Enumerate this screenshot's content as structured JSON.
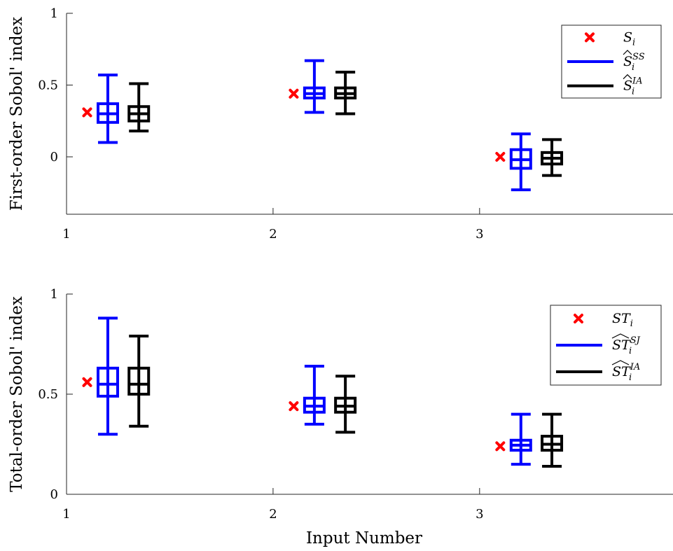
{
  "chart_data": [
    {
      "type": "box",
      "panel": "top",
      "ylabel": "First-order Sobol' index",
      "xlabel": "",
      "xlim": [
        1,
        3.95
      ],
      "ylim": [
        -0.4,
        1
      ],
      "xticks": [
        "1",
        "2",
        "3"
      ],
      "yticks": [
        "0",
        "0.5",
        "1"
      ],
      "grid": false,
      "legend_position": "top-right",
      "legend": [
        {
          "base": "S",
          "sub": "i",
          "sup": "",
          "hat": false,
          "marker": "x",
          "color": "#ff0000"
        },
        {
          "base": "S",
          "sub": "i",
          "sup": "SS",
          "hat": true,
          "marker": "line",
          "color": "#0000ff"
        },
        {
          "base": "S",
          "sub": "i",
          "sup": "IA",
          "hat": true,
          "marker": "line",
          "color": "#000000"
        }
      ],
      "reference_points": {
        "name": "S_i",
        "color": "#ff0000",
        "x": [
          1.1,
          2.1,
          3.1
        ],
        "y": [
          0.31,
          0.44,
          0.0
        ]
      },
      "series": [
        {
          "name": "Ŝ_i^SS",
          "color": "#0000ff",
          "boxes": [
            {
              "x": 1.2,
              "min": 0.1,
              "q1": 0.24,
              "median": 0.3,
              "q3": 0.37,
              "max": 0.57
            },
            {
              "x": 2.2,
              "min": 0.31,
              "q1": 0.41,
              "median": 0.44,
              "q3": 0.48,
              "max": 0.67
            },
            {
              "x": 3.2,
              "min": -0.23,
              "q1": -0.08,
              "median": -0.02,
              "q3": 0.05,
              "max": 0.16
            }
          ]
        },
        {
          "name": "Ŝ_i^IA",
          "color": "#000000",
          "boxes": [
            {
              "x": 1.35,
              "min": 0.18,
              "q1": 0.25,
              "median": 0.3,
              "q3": 0.35,
              "max": 0.51
            },
            {
              "x": 2.35,
              "min": 0.3,
              "q1": 0.41,
              "median": 0.44,
              "q3": 0.48,
              "max": 0.59
            },
            {
              "x": 3.35,
              "min": -0.13,
              "q1": -0.05,
              "median": -0.01,
              "q3": 0.03,
              "max": 0.12
            }
          ]
        }
      ]
    },
    {
      "type": "box",
      "panel": "bottom",
      "ylabel": "Total-order Sobol' index",
      "xlabel": "Input Number",
      "xlim": [
        1,
        3.95
      ],
      "ylim": [
        0,
        1
      ],
      "xticks": [
        "1",
        "2",
        "3"
      ],
      "yticks": [
        "0",
        "0.5",
        "1"
      ],
      "grid": false,
      "legend_position": "top-right",
      "legend": [
        {
          "base": "ST",
          "sub": "i",
          "sup": "",
          "hat": false,
          "marker": "x",
          "color": "#ff0000"
        },
        {
          "base": "ST",
          "sub": "i",
          "sup": "SJ",
          "hat": true,
          "marker": "line",
          "color": "#0000ff"
        },
        {
          "base": "ST",
          "sub": "i",
          "sup": "IA",
          "hat": true,
          "marker": "line",
          "color": "#000000"
        }
      ],
      "reference_points": {
        "name": "ST_i",
        "color": "#ff0000",
        "x": [
          1.1,
          2.1,
          3.1
        ],
        "y": [
          0.56,
          0.44,
          0.24
        ]
      },
      "series": [
        {
          "name": "ŜT_i^SJ",
          "color": "#0000ff",
          "boxes": [
            {
              "x": 1.2,
              "min": 0.3,
              "q1": 0.49,
              "median": 0.55,
              "q3": 0.63,
              "max": 0.88
            },
            {
              "x": 2.2,
              "min": 0.35,
              "q1": 0.41,
              "median": 0.44,
              "q3": 0.48,
              "max": 0.64
            },
            {
              "x": 3.2,
              "min": 0.15,
              "q1": 0.22,
              "median": 0.245,
              "q3": 0.27,
              "max": 0.4
            }
          ]
        },
        {
          "name": "ŜT_i^IA",
          "color": "#000000",
          "boxes": [
            {
              "x": 1.35,
              "min": 0.34,
              "q1": 0.5,
              "median": 0.55,
              "q3": 0.63,
              "max": 0.79
            },
            {
              "x": 2.35,
              "min": 0.31,
              "q1": 0.41,
              "median": 0.44,
              "q3": 0.48,
              "max": 0.59
            },
            {
              "x": 3.35,
              "min": 0.14,
              "q1": 0.22,
              "median": 0.25,
              "q3": 0.29,
              "max": 0.4
            }
          ]
        }
      ]
    }
  ]
}
